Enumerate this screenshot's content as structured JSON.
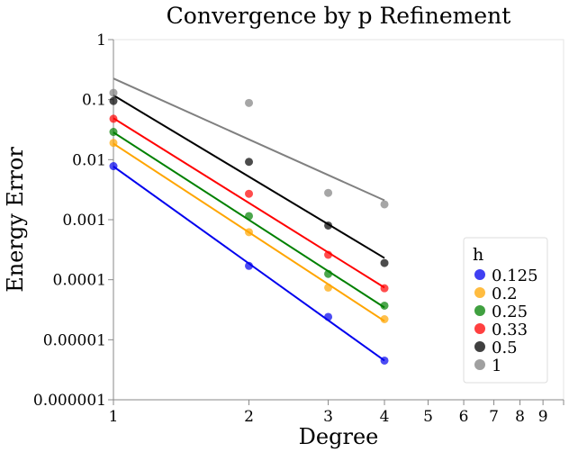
{
  "chart_data": {
    "type": "scatter",
    "title": "Convergence by p Refinement",
    "xlabel": "Degree",
    "ylabel": "Energy Error",
    "xscale": "log",
    "yscale": "log",
    "xlim": [
      1,
      10
    ],
    "ylim": [
      1e-06,
      1
    ],
    "x_ticks": [
      1,
      2,
      3,
      4,
      5,
      6,
      7,
      8,
      9
    ],
    "x_tick_labels": [
      "1",
      "2",
      "3",
      "4",
      "5",
      "6",
      "7",
      "8",
      "9"
    ],
    "y_ticks": [
      1e-06,
      1e-05,
      0.0001,
      0.001,
      0.01,
      0.1,
      1
    ],
    "y_tick_labels": [
      "0.000001",
      "0.00001",
      "0.0001",
      "0.001",
      "0.01",
      "0.1",
      "1"
    ],
    "grid": false,
    "legend": {
      "title": "h",
      "position": "bottom-right"
    },
    "series": [
      {
        "name": "0.125",
        "color": "#0000ee",
        "x": [
          1,
          2,
          3,
          4
        ],
        "y": [
          0.0078,
          0.00017,
          2.4e-05,
          4.5e-06
        ],
        "fit": [
          0.0077,
          4.5e-06
        ]
      },
      {
        "name": "0.2",
        "color": "#ffa500",
        "x": [
          1,
          2,
          3,
          4
        ],
        "y": [
          0.019,
          0.00062,
          7.4e-05,
          2.2e-05
        ],
        "fit": [
          0.0185,
          2.05e-05
        ]
      },
      {
        "name": "0.25",
        "color": "#008000",
        "x": [
          1,
          2,
          3,
          4
        ],
        "y": [
          0.029,
          0.00115,
          0.000125,
          3.7e-05
        ],
        "fit": [
          0.0285,
          3.45e-05
        ]
      },
      {
        "name": "0.33",
        "color": "#ff0000",
        "x": [
          1,
          2,
          3,
          4
        ],
        "y": [
          0.048,
          0.0027,
          0.00026,
          7.2e-05
        ],
        "fit": [
          0.049,
          7.4e-05
        ]
      },
      {
        "name": "0.5",
        "color": "#000000",
        "x": [
          1,
          2,
          3,
          4
        ],
        "y": [
          0.095,
          0.0092,
          0.0008,
          0.00019
        ],
        "fit": [
          0.118,
          0.00023
        ]
      },
      {
        "name": "1",
        "color": "#808080",
        "x": [
          1,
          2,
          3,
          4
        ],
        "y": [
          0.13,
          0.088,
          0.0028,
          0.0018
        ],
        "fit": [
          0.225,
          0.0021
        ]
      }
    ]
  }
}
